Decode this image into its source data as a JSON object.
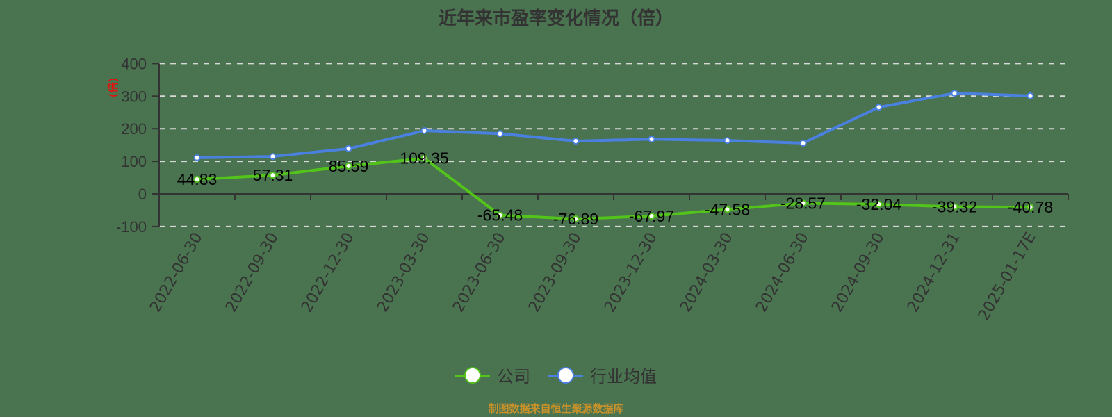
{
  "title": "近年来市盈率变化情况（倍）",
  "footer": "制图数据来自恒生聚源数据库",
  "colors": {
    "background": "#4a7350",
    "company": "#52c41a",
    "industry": "#4a80e0",
    "unit_label": "#ff0000",
    "axis": "#333333",
    "grid": "#d9d9d9",
    "footer": "#c8922a"
  },
  "legend": [
    {
      "label": "公司",
      "icon": "circle-marker-icon",
      "color": "#52c41a"
    },
    {
      "label": "行业均值",
      "icon": "circle-marker-icon",
      "color": "#4a80e0"
    }
  ],
  "chart_data": {
    "type": "line",
    "title": "近年来市盈率变化情况（倍）",
    "xlabel": "",
    "ylabel": "(倍)",
    "ylim": [
      -100,
      400
    ],
    "yticks": [
      400,
      300,
      200,
      100,
      0,
      -100
    ],
    "grid": true,
    "legend_position": "bottom",
    "categories": [
      "2022-06-30",
      "2022-09-30",
      "2022-12-30",
      "2023-03-30",
      "2023-06-30",
      "2023-09-30",
      "2023-12-30",
      "2024-03-30",
      "2024-06-30",
      "2024-09-30",
      "2024-12-31",
      "2025-01-17E"
    ],
    "series": [
      {
        "name": "公司",
        "color": "#52c41a",
        "show_labels": true,
        "values": [
          44.83,
          57.31,
          85.59,
          109.35,
          -65.48,
          -76.89,
          -67.97,
          -47.58,
          -28.57,
          -32.04,
          -39.32,
          -40.78
        ]
      },
      {
        "name": "行业均值",
        "color": "#4a80e0",
        "show_labels": false,
        "values": [
          111,
          115,
          139,
          194,
          185,
          162,
          168,
          164,
          156,
          266,
          309,
          301
        ]
      }
    ]
  }
}
